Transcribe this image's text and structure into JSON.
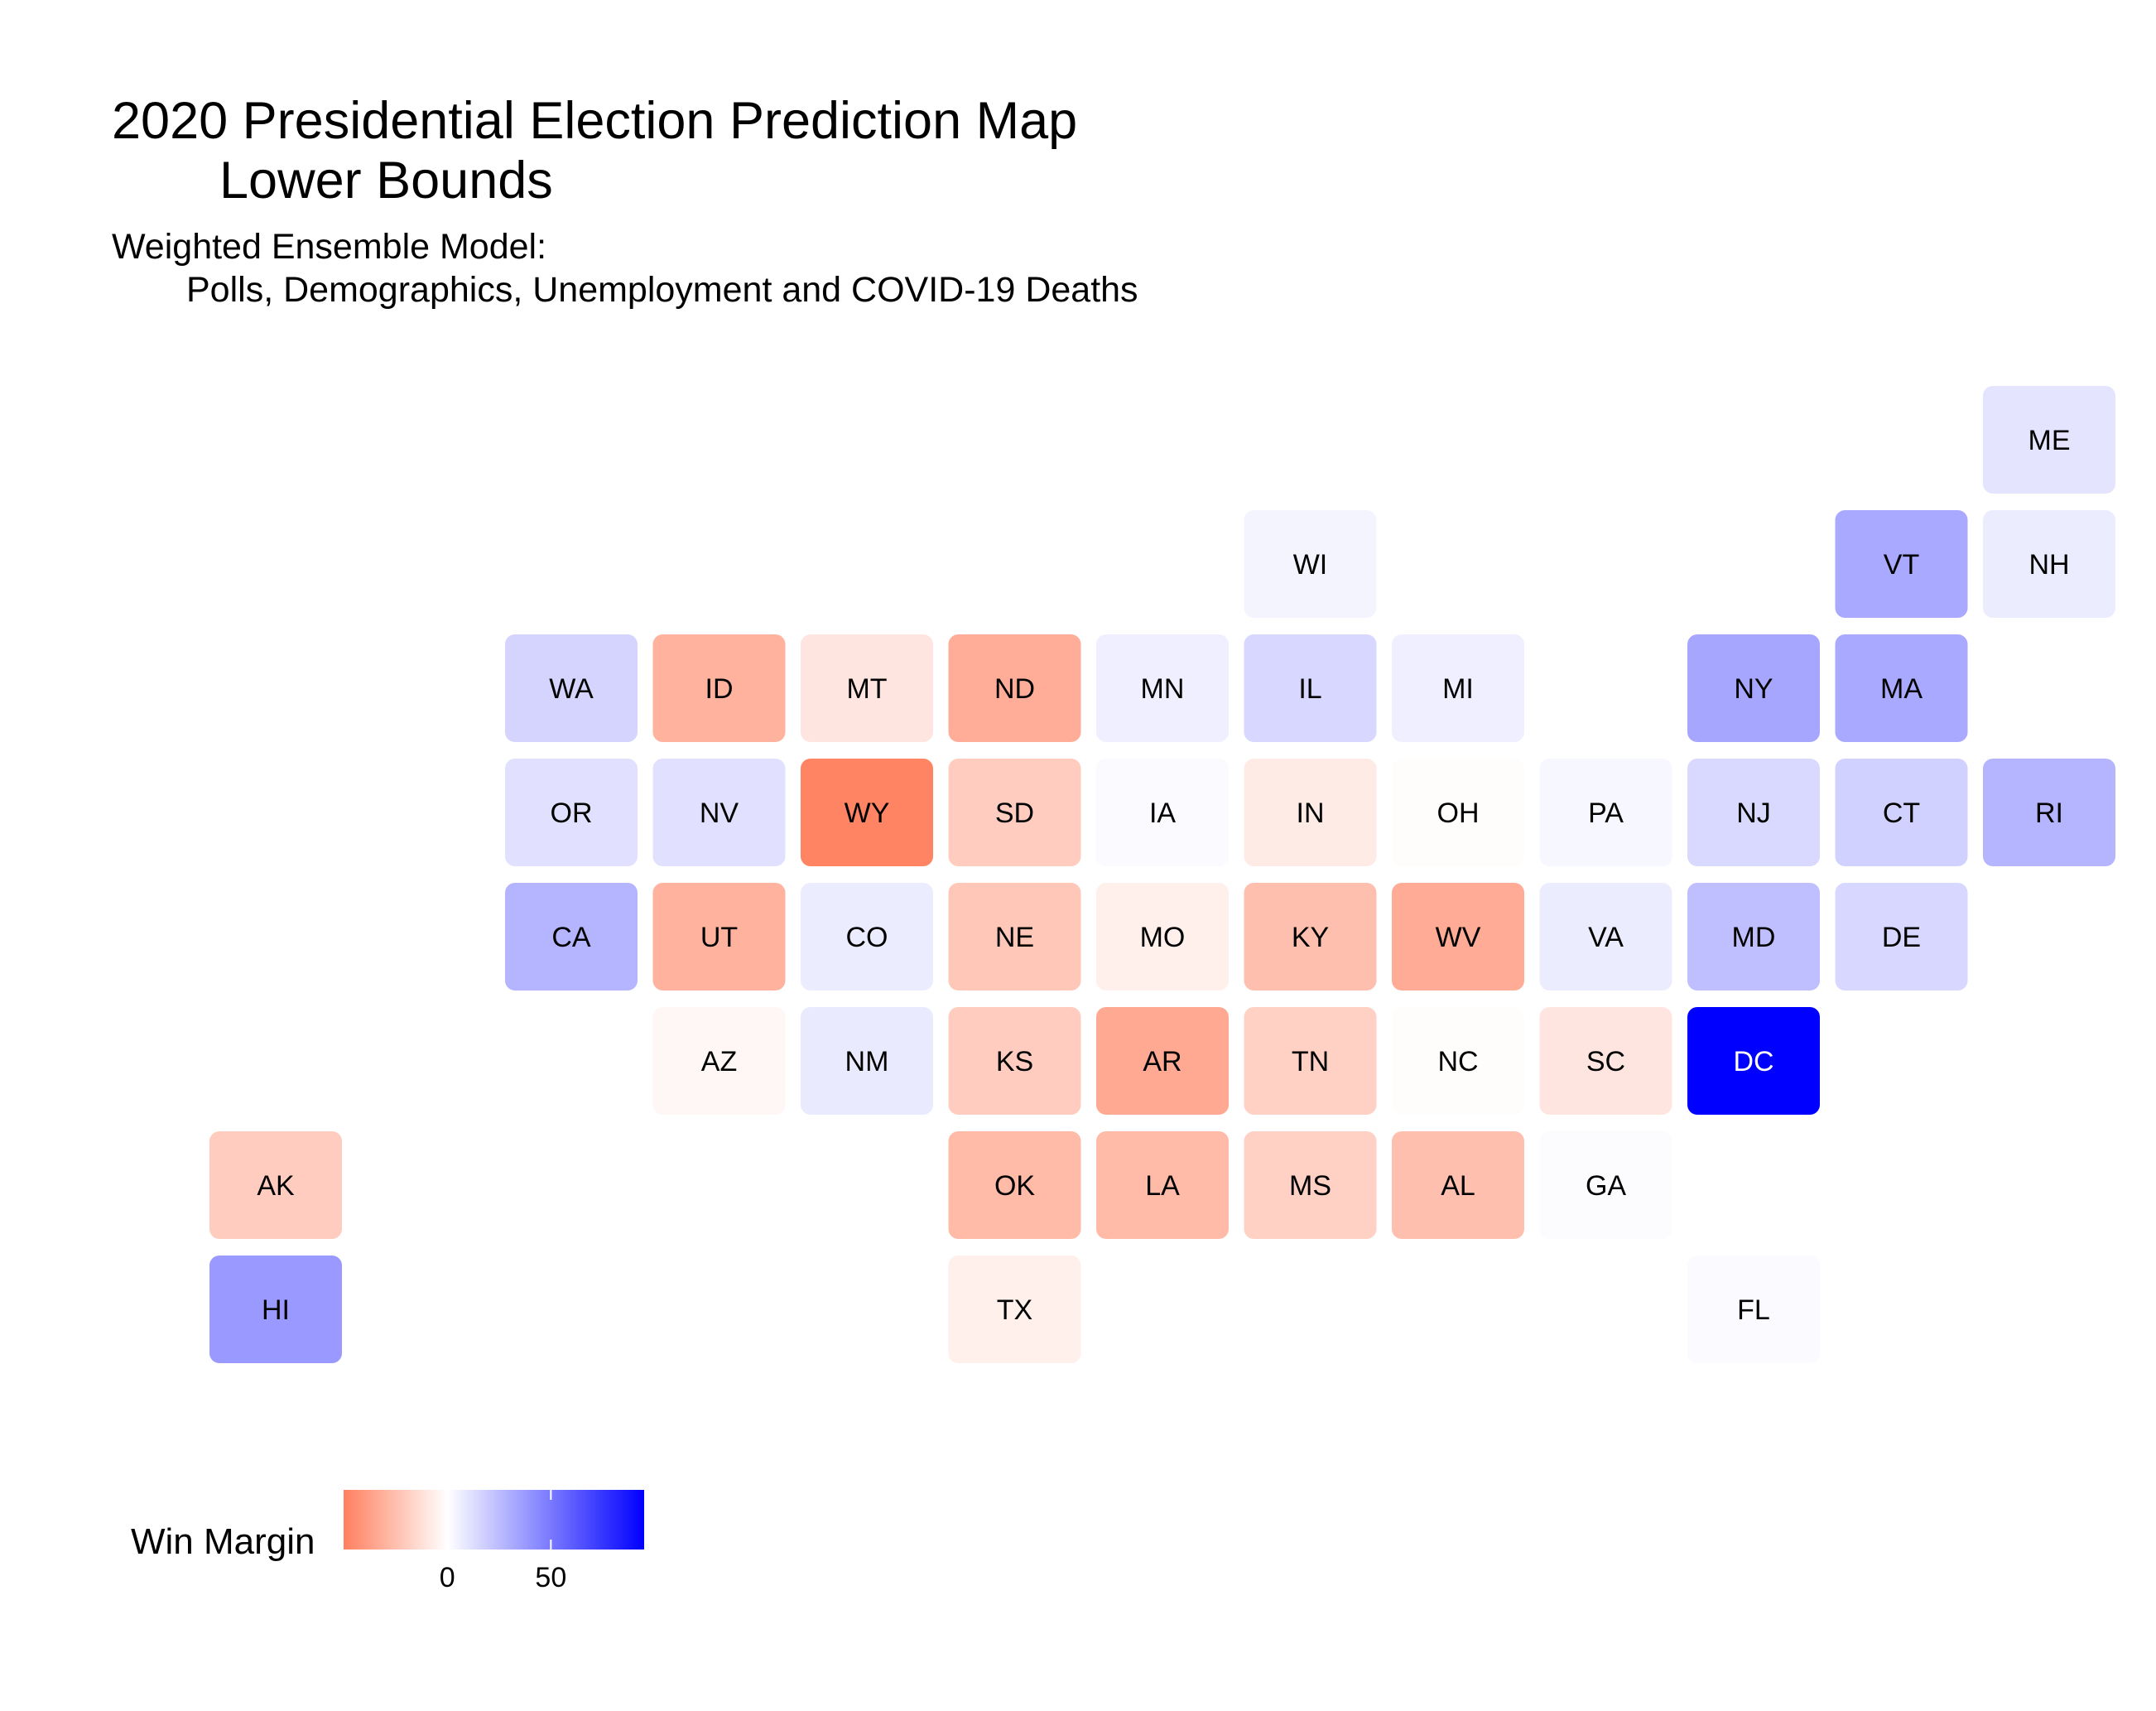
{
  "chart_data": {
    "type": "heatmap",
    "title": "2020 Presidential Election Prediction Map",
    "title_line2": "Lower Bounds",
    "subtitle": "Weighted Ensemble Model:",
    "subtitle_line2": "Polls, Demographics, Unemployment and COVID-19 Deaths",
    "legend": {
      "title": "Win Margin",
      "min": -50,
      "max": 95,
      "ticks": [
        0,
        50
      ],
      "tick_labels": [
        "0",
        "50"
      ],
      "colors": {
        "low": "#ff7f5e",
        "mid": "#ffffff",
        "high": "#0000ff"
      }
    },
    "states": [
      {
        "abbr": "ME",
        "col": 12,
        "row": 0,
        "margin": 10
      },
      {
        "abbr": "WI",
        "col": 7,
        "row": 1,
        "margin": 4
      },
      {
        "abbr": "VT",
        "col": 11,
        "row": 1,
        "margin": 32
      },
      {
        "abbr": "NH",
        "col": 12,
        "row": 1,
        "margin": 7
      },
      {
        "abbr": "WA",
        "col": 2,
        "row": 2,
        "margin": 16
      },
      {
        "abbr": "ID",
        "col": 3,
        "row": 2,
        "margin": -30
      },
      {
        "abbr": "MT",
        "col": 4,
        "row": 2,
        "margin": -10
      },
      {
        "abbr": "ND",
        "col": 5,
        "row": 2,
        "margin": -32
      },
      {
        "abbr": "MN",
        "col": 6,
        "row": 2,
        "margin": 6
      },
      {
        "abbr": "IL",
        "col": 7,
        "row": 2,
        "margin": 15
      },
      {
        "abbr": "MI",
        "col": 8,
        "row": 2,
        "margin": 6
      },
      {
        "abbr": "NY",
        "col": 10,
        "row": 2,
        "margin": 33
      },
      {
        "abbr": "MA",
        "col": 11,
        "row": 2,
        "margin": 32
      },
      {
        "abbr": "OR",
        "col": 2,
        "row": 3,
        "margin": 11
      },
      {
        "abbr": "NV",
        "col": 3,
        "row": 3,
        "margin": 11
      },
      {
        "abbr": "WY",
        "col": 4,
        "row": 3,
        "margin": -48
      },
      {
        "abbr": "SD",
        "col": 5,
        "row": 3,
        "margin": -20
      },
      {
        "abbr": "IA",
        "col": 6,
        "row": 3,
        "margin": 2
      },
      {
        "abbr": "IN",
        "col": 7,
        "row": 3,
        "margin": -8
      },
      {
        "abbr": "OH",
        "col": 8,
        "row": 3,
        "margin": -1
      },
      {
        "abbr": "PA",
        "col": 9,
        "row": 3,
        "margin": 3
      },
      {
        "abbr": "NJ",
        "col": 10,
        "row": 3,
        "margin": 14
      },
      {
        "abbr": "CT",
        "col": 11,
        "row": 3,
        "margin": 17
      },
      {
        "abbr": "RI",
        "col": 12,
        "row": 3,
        "margin": 28
      },
      {
        "abbr": "CA",
        "col": 2,
        "row": 4,
        "margin": 28
      },
      {
        "abbr": "UT",
        "col": 3,
        "row": 4,
        "margin": -30
      },
      {
        "abbr": "CO",
        "col": 4,
        "row": 4,
        "margin": 7
      },
      {
        "abbr": "NE",
        "col": 5,
        "row": 4,
        "margin": -22
      },
      {
        "abbr": "MO",
        "col": 6,
        "row": 4,
        "margin": -6
      },
      {
        "abbr": "KY",
        "col": 7,
        "row": 4,
        "margin": -25
      },
      {
        "abbr": "WV",
        "col": 8,
        "row": 4,
        "margin": -33
      },
      {
        "abbr": "VA",
        "col": 9,
        "row": 4,
        "margin": 7
      },
      {
        "abbr": "MD",
        "col": 10,
        "row": 4,
        "margin": 24
      },
      {
        "abbr": "DE",
        "col": 11,
        "row": 4,
        "margin": 15
      },
      {
        "abbr": "AZ",
        "col": 3,
        "row": 5,
        "margin": -3
      },
      {
        "abbr": "NM",
        "col": 4,
        "row": 5,
        "margin": 8
      },
      {
        "abbr": "KS",
        "col": 5,
        "row": 5,
        "margin": -20
      },
      {
        "abbr": "AR",
        "col": 6,
        "row": 5,
        "margin": -34
      },
      {
        "abbr": "TN",
        "col": 7,
        "row": 5,
        "margin": -18
      },
      {
        "abbr": "NC",
        "col": 8,
        "row": 5,
        "margin": -1
      },
      {
        "abbr": "SC",
        "col": 9,
        "row": 5,
        "margin": -10
      },
      {
        "abbr": "DC",
        "col": 10,
        "row": 5,
        "margin": 95
      },
      {
        "abbr": "AK",
        "col": 0,
        "row": 6,
        "margin": -20
      },
      {
        "abbr": "OK",
        "col": 5,
        "row": 6,
        "margin": -27
      },
      {
        "abbr": "LA",
        "col": 6,
        "row": 6,
        "margin": -27
      },
      {
        "abbr": "MS",
        "col": 7,
        "row": 6,
        "margin": -18
      },
      {
        "abbr": "AL",
        "col": 8,
        "row": 6,
        "margin": -25
      },
      {
        "abbr": "GA",
        "col": 9,
        "row": 6,
        "margin": 1
      },
      {
        "abbr": "HI",
        "col": 0,
        "row": 7,
        "margin": 38
      },
      {
        "abbr": "TX",
        "col": 5,
        "row": 7,
        "margin": -6
      },
      {
        "abbr": "FL",
        "col": 10,
        "row": 7,
        "margin": 2
      }
    ]
  }
}
